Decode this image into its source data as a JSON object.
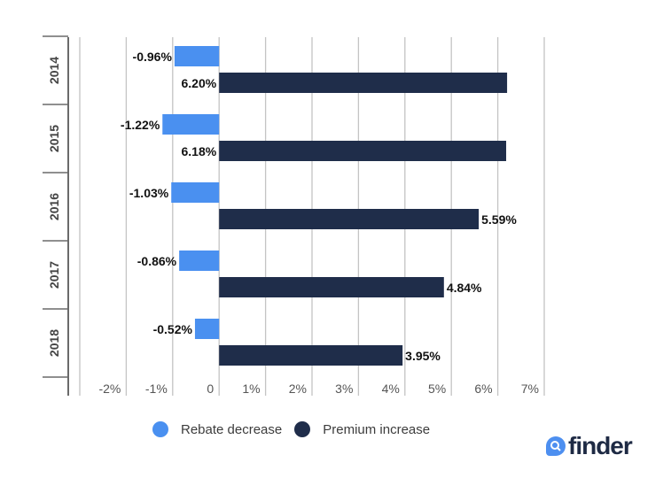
{
  "chart_data": {
    "type": "bar",
    "orientation": "horizontal",
    "categories": [
      "2014",
      "2015",
      "2016",
      "2017",
      "2018"
    ],
    "series": [
      {
        "name": "Rebate decrease",
        "color": "#4a90f0",
        "values": [
          -0.96,
          -1.22,
          -1.03,
          -0.86,
          -0.52
        ],
        "labels": [
          "-0.96%",
          "-1.22%",
          "-1.03%",
          "-0.86%",
          "-0.52%"
        ]
      },
      {
        "name": "Premium increase",
        "color": "#1f2d4a",
        "values": [
          6.2,
          6.18,
          5.59,
          4.84,
          3.95
        ],
        "labels": [
          "6.20%",
          "6.18%",
          "5.59%",
          "4.84%",
          "3.95%"
        ]
      }
    ],
    "xlim": [
      -3,
      7
    ],
    "x_ticks": [
      -2,
      -1,
      0,
      1,
      2,
      3,
      4,
      5,
      6,
      7
    ],
    "x_tick_labels": [
      "-2%",
      "-1%",
      "0",
      "1%",
      "2%",
      "3%",
      "4%",
      "5%",
      "6%",
      "7%"
    ],
    "grid": true,
    "legend_position": "bottom",
    "title": "",
    "xlabel": "",
    "ylabel": ""
  },
  "brand": {
    "logo_text": "finder",
    "color": "#1e2a44",
    "accent": "#4d8ff0"
  }
}
